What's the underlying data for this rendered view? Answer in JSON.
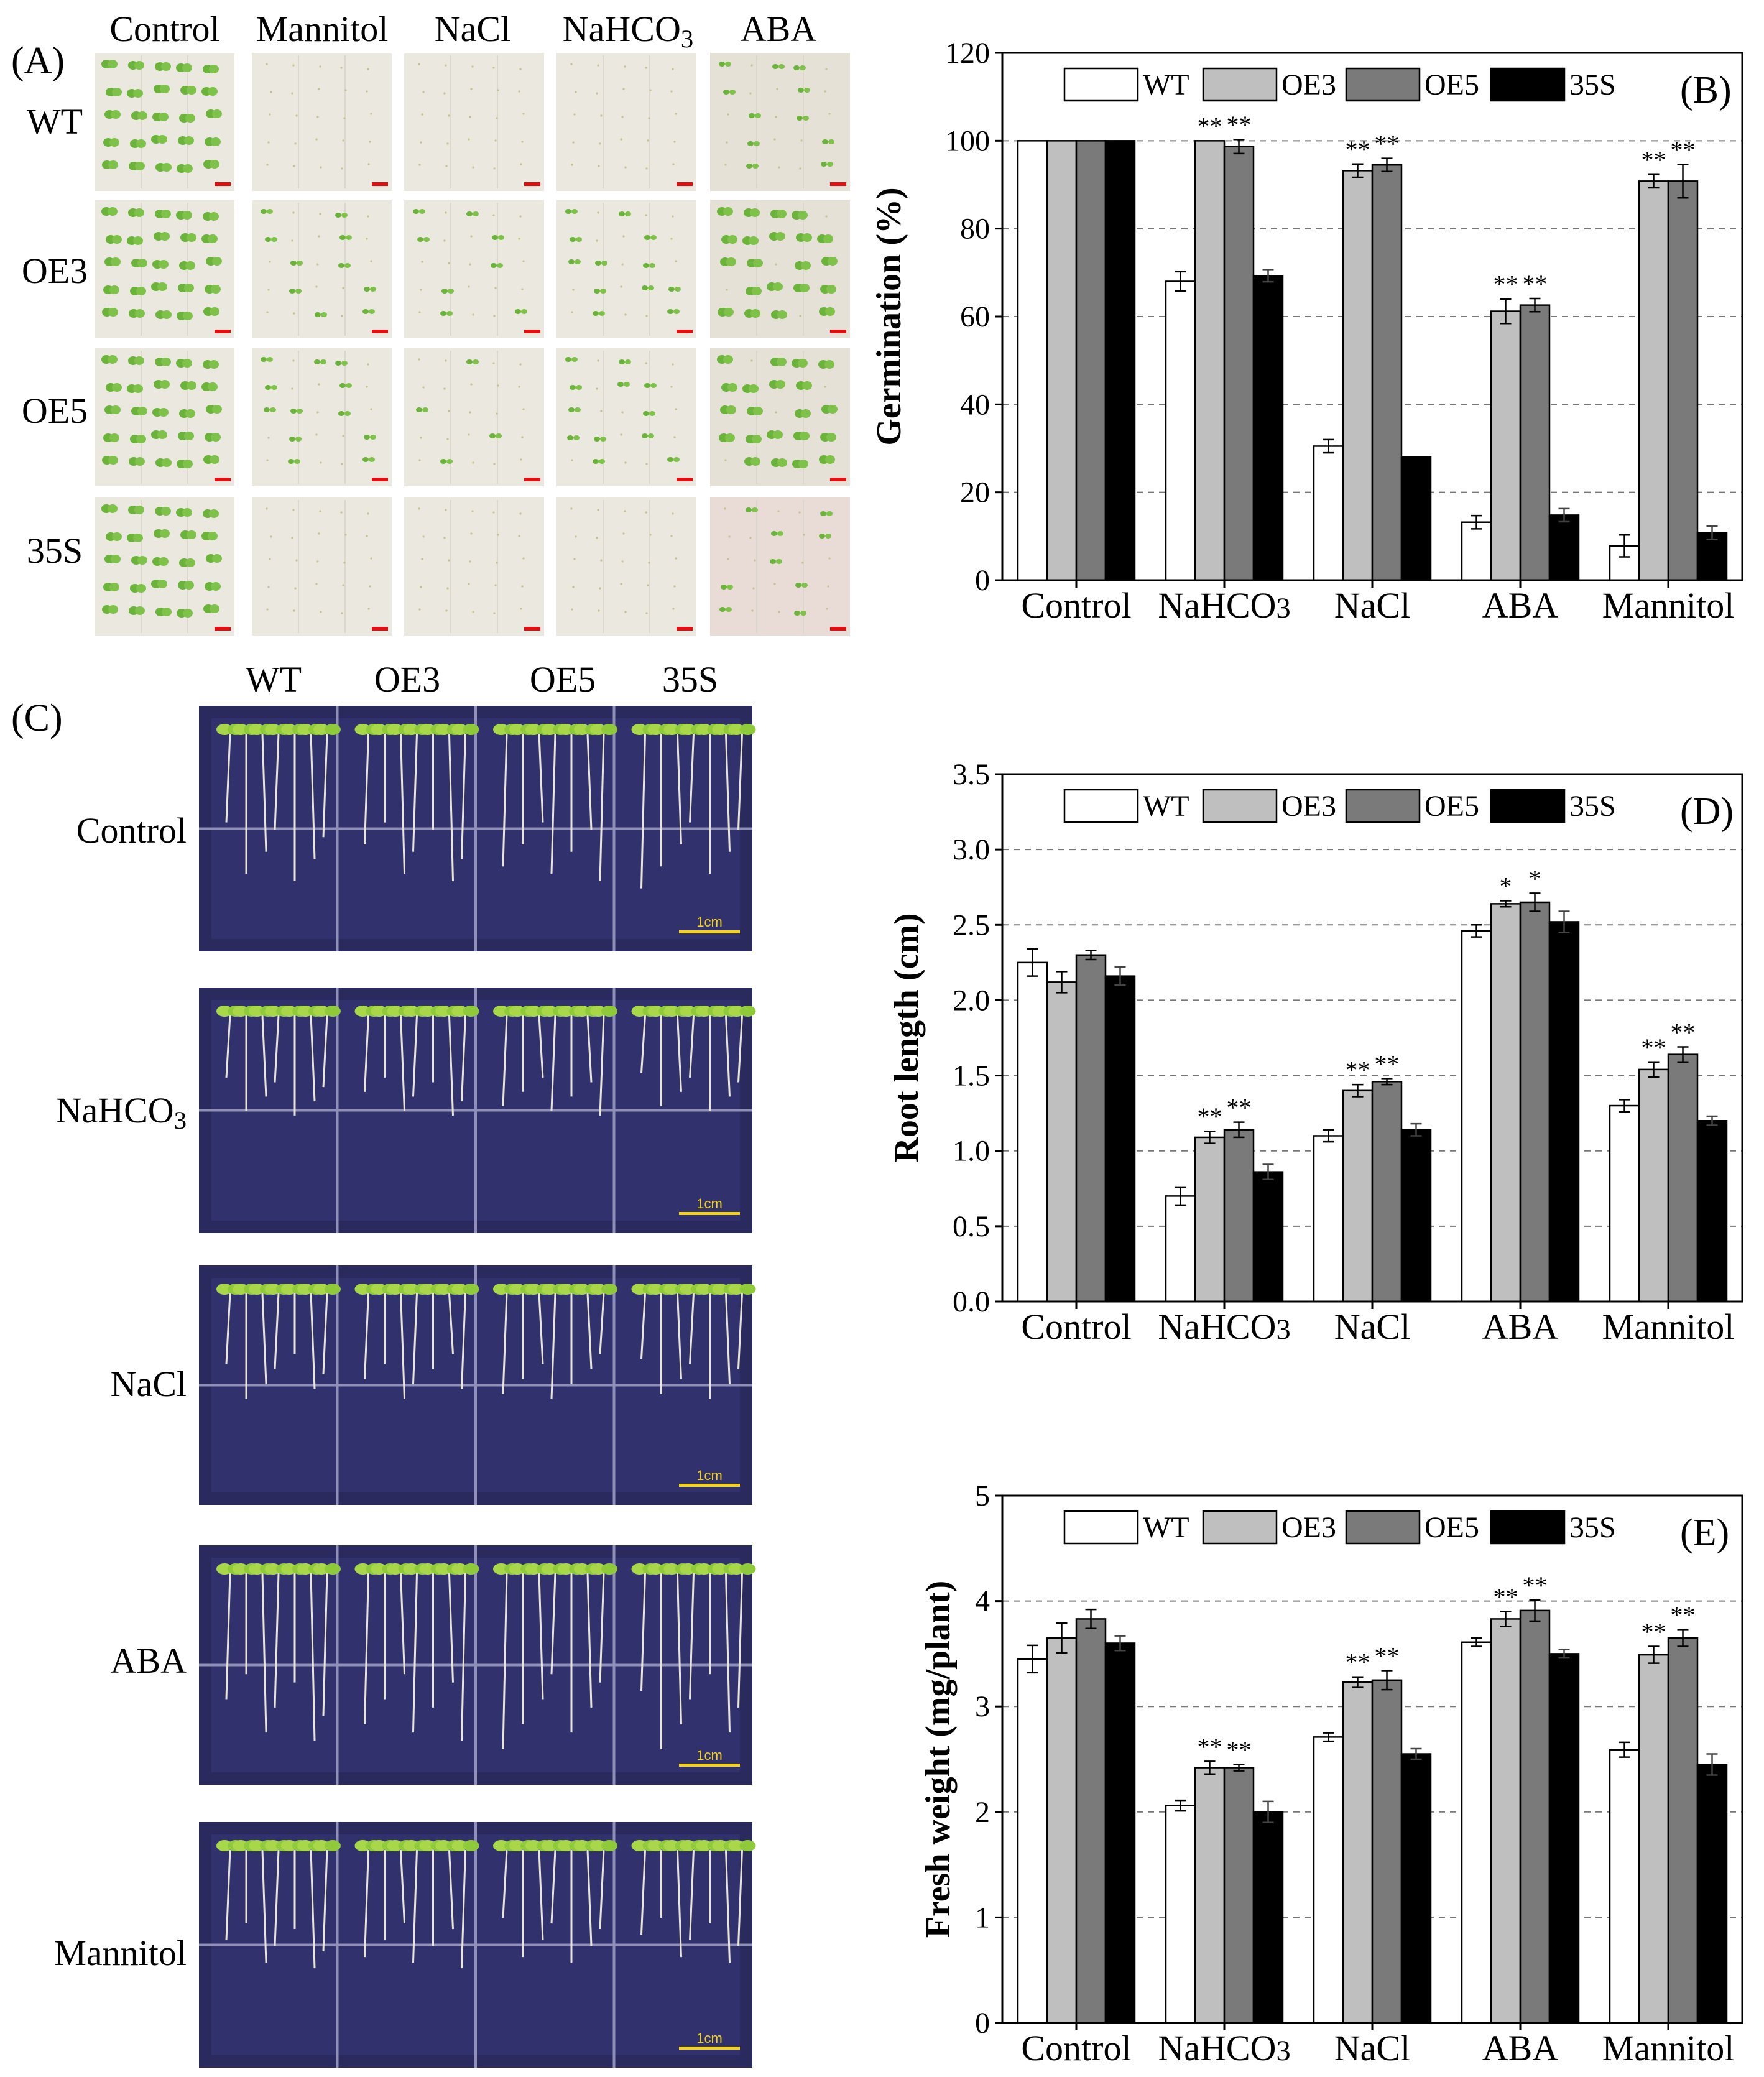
{
  "panel_labels": {
    "A": "(A)",
    "B": "(B)",
    "C": "(C)",
    "D": "(D)",
    "E": "(E)"
  },
  "colors": {
    "WT": "#ffffff",
    "OE3": "#bfbfbf",
    "OE5": "#7a7a7a",
    "35S": "#000000"
  },
  "panel_a": {
    "columns": [
      "Control",
      "Mannitol",
      "NaCl",
      "NaHCO3",
      "ABA"
    ],
    "rows": [
      "WT",
      "OE3",
      "OE5",
      "35S"
    ],
    "scale_label": "1cm"
  },
  "panel_c": {
    "columns": [
      "WT",
      "OE3",
      "OE5",
      "35S"
    ],
    "rows": [
      "Control",
      "NaHCO3",
      "NaCl",
      "ABA",
      "Mannitol"
    ],
    "scale_label": "1cm"
  },
  "chart_data": [
    {
      "id": "B",
      "type": "bar",
      "ylabel": "Germination (%)",
      "ylim": [
        0,
        120
      ],
      "yticks": [
        0,
        20,
        40,
        60,
        80,
        100,
        120
      ],
      "grid": "dashed-horizontal",
      "legend": "top",
      "categories": [
        "Control",
        "NaHCO3",
        "NaCl",
        "ABA",
        "Mannitol"
      ],
      "series": [
        {
          "name": "WT",
          "values": [
            100,
            68,
            30.5,
            13.2,
            7.8
          ],
          "errors": [
            0,
            2.2,
            1.5,
            1.5,
            2.5
          ]
        },
        {
          "name": "OE3",
          "values": [
            100,
            100,
            93.2,
            61.2,
            90.8
          ],
          "errors": [
            0,
            0,
            1.5,
            2.8,
            1.5
          ]
        },
        {
          "name": "OE5",
          "values": [
            100,
            98.7,
            94.5,
            62.6,
            90.8
          ],
          "errors": [
            0,
            1.6,
            1.5,
            1.5,
            3.8
          ]
        },
        {
          "name": "35S",
          "values": [
            100,
            69.3,
            28,
            14.8,
            10.8
          ],
          "errors": [
            0,
            1.4,
            0,
            1.5,
            1.5
          ]
        }
      ],
      "annotations": [
        {
          "category": "NaHCO3",
          "series": "OE3",
          "text": "**"
        },
        {
          "category": "NaHCO3",
          "series": "OE5",
          "text": "**"
        },
        {
          "category": "NaCl",
          "series": "OE3",
          "text": "**"
        },
        {
          "category": "NaCl",
          "series": "OE5",
          "text": "**"
        },
        {
          "category": "ABA",
          "series": "OE3",
          "text": "**"
        },
        {
          "category": "ABA",
          "series": "OE5",
          "text": "**"
        },
        {
          "category": "Mannitol",
          "series": "OE3",
          "text": "**"
        },
        {
          "category": "Mannitol",
          "series": "OE5",
          "text": "**"
        }
      ]
    },
    {
      "id": "D",
      "type": "bar",
      "ylabel": "Root length (cm)",
      "ylim": [
        0,
        3.5
      ],
      "yticks": [
        0.0,
        0.5,
        1.0,
        1.5,
        2.0,
        2.5,
        3.0,
        3.5
      ],
      "tick_decimals": 1,
      "grid": "dashed-horizontal",
      "legend": "top",
      "categories": [
        "Control",
        "NaHCO3",
        "NaCl",
        "ABA",
        "Mannitol"
      ],
      "series": [
        {
          "name": "WT",
          "values": [
            2.25,
            0.7,
            1.1,
            2.46,
            1.3
          ],
          "errors": [
            0.09,
            0.06,
            0.04,
            0.04,
            0.04
          ]
        },
        {
          "name": "OE3",
          "values": [
            2.12,
            1.09,
            1.4,
            2.64,
            1.54
          ],
          "errors": [
            0.07,
            0.04,
            0.04,
            0.02,
            0.05
          ]
        },
        {
          "name": "OE5",
          "values": [
            2.3,
            1.14,
            1.46,
            2.65,
            1.64
          ],
          "errors": [
            0.03,
            0.05,
            0.02,
            0.06,
            0.05
          ]
        },
        {
          "name": "35S",
          "values": [
            2.16,
            0.86,
            1.14,
            2.52,
            1.2
          ],
          "errors": [
            0.06,
            0.05,
            0.04,
            0.07,
            0.03
          ]
        }
      ],
      "annotations": [
        {
          "category": "NaHCO3",
          "series": "OE3",
          "text": "**"
        },
        {
          "category": "NaHCO3",
          "series": "OE5",
          "text": "**"
        },
        {
          "category": "NaCl",
          "series": "OE3",
          "text": "**"
        },
        {
          "category": "NaCl",
          "series": "OE5",
          "text": "**"
        },
        {
          "category": "ABA",
          "series": "OE3",
          "text": "*"
        },
        {
          "category": "ABA",
          "series": "OE5",
          "text": "*"
        },
        {
          "category": "Mannitol",
          "series": "OE3",
          "text": "**"
        },
        {
          "category": "Mannitol",
          "series": "OE5",
          "text": "**"
        }
      ]
    },
    {
      "id": "E",
      "type": "bar",
      "ylabel": "Fresh weight (mg/plant)",
      "ylim": [
        0,
        5
      ],
      "yticks": [
        0,
        1,
        2,
        3,
        4,
        5
      ],
      "grid": "dashed-horizontal",
      "legend": "top",
      "categories": [
        "Control",
        "NaHCO3",
        "NaCl",
        "ABA",
        "Mannitol"
      ],
      "series": [
        {
          "name": "WT",
          "values": [
            3.45,
            2.06,
            2.71,
            3.61,
            2.59
          ],
          "errors": [
            0.13,
            0.05,
            0.04,
            0.04,
            0.07
          ]
        },
        {
          "name": "OE3",
          "values": [
            3.65,
            2.42,
            3.23,
            3.83,
            3.49
          ],
          "errors": [
            0.14,
            0.06,
            0.05,
            0.07,
            0.08
          ]
        },
        {
          "name": "OE5",
          "values": [
            3.83,
            2.42,
            3.25,
            3.91,
            3.65
          ],
          "errors": [
            0.09,
            0.03,
            0.09,
            0.1,
            0.08
          ]
        },
        {
          "name": "35S",
          "values": [
            3.6,
            2.0,
            2.55,
            3.5,
            2.45
          ],
          "errors": [
            0.07,
            0.1,
            0.05,
            0.04,
            0.1
          ]
        }
      ],
      "annotations": [
        {
          "category": "NaHCO3",
          "series": "OE3",
          "text": "**"
        },
        {
          "category": "NaHCO3",
          "series": "OE5",
          "text": "**"
        },
        {
          "category": "NaCl",
          "series": "OE3",
          "text": "**"
        },
        {
          "category": "NaCl",
          "series": "OE5",
          "text": "**"
        },
        {
          "category": "ABA",
          "series": "OE3",
          "text": "**"
        },
        {
          "category": "ABA",
          "series": "OE5",
          "text": "**"
        },
        {
          "category": "Mannitol",
          "series": "OE3",
          "text": "**"
        },
        {
          "category": "Mannitol",
          "series": "OE5",
          "text": "**"
        }
      ]
    }
  ]
}
